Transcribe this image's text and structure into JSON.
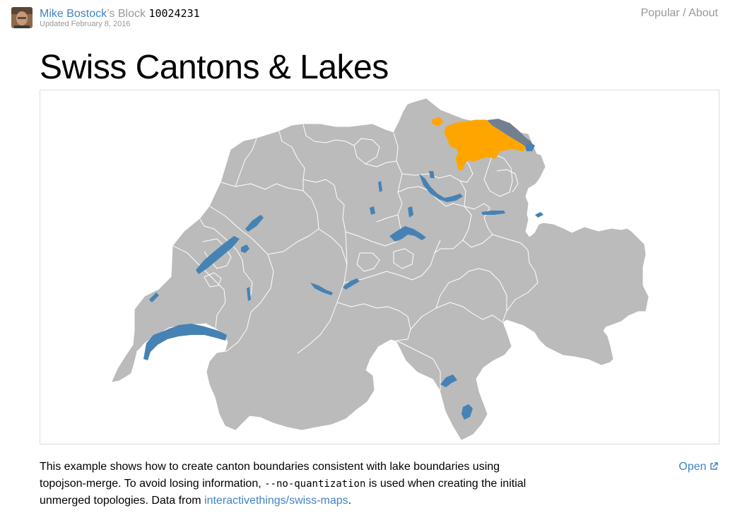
{
  "header": {
    "owner_name": "Mike Bostock",
    "owner_suffix": "’s Block",
    "gist_id": "10024231",
    "updated": "Updated February 8, 2016",
    "nav_popular": "Popular",
    "nav_separator": " / ",
    "nav_about": "About"
  },
  "title": "Swiss Cantons & Lakes",
  "map": {
    "colors": {
      "land": "#bbbbbb",
      "boundary": "#ffffff",
      "lake": "#4682b4",
      "highlight": "#ffa500",
      "highlight_lake": "#708090"
    }
  },
  "description": {
    "part1": "This example shows how to create canton boundaries consistent with lake boundaries using topojson-merge. To avoid losing information, ",
    "code": "--no-quantization",
    "part2": " is used when creating the initial unmerged topologies. Data from ",
    "link_text": "interactivethings/swiss-maps",
    "part3": "."
  },
  "open_link": "Open"
}
